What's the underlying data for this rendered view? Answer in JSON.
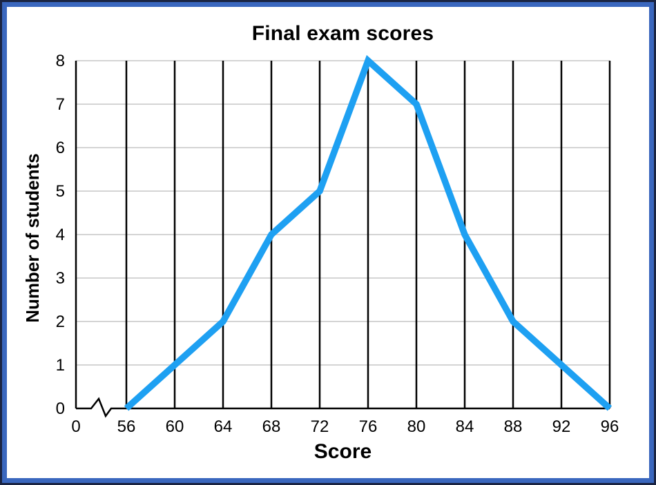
{
  "window": {
    "border_outer_color": "#1A2442",
    "border_inner_color": "#3A67BE",
    "background": "#ffffff"
  },
  "chart_data": {
    "type": "line",
    "title": "Final exam scores",
    "xlabel": "Score",
    "ylabel": "Number of students",
    "x": [
      56,
      60,
      64,
      68,
      72,
      76,
      80,
      84,
      88,
      92,
      96
    ],
    "values": [
      0,
      1,
      2,
      4,
      5,
      8,
      7,
      4,
      2,
      1,
      0
    ],
    "x_ticks": [
      "0",
      "56",
      "60",
      "64",
      "68",
      "72",
      "76",
      "80",
      "84",
      "88",
      "92",
      "96"
    ],
    "y_ticks": [
      0,
      1,
      2,
      3,
      4,
      5,
      6,
      7,
      8
    ],
    "xlim_note": "x axis has a break between 0 and 56",
    "axis_break": true,
    "ylim": [
      0,
      8
    ],
    "grid": {
      "vertical_color": "#000000",
      "horizontal_color": "#d4d4d4",
      "vertical_on": true,
      "horizontal_on": true
    },
    "line_color": "#1EA0F2",
    "axis_color": "#000000",
    "legend": "none"
  }
}
